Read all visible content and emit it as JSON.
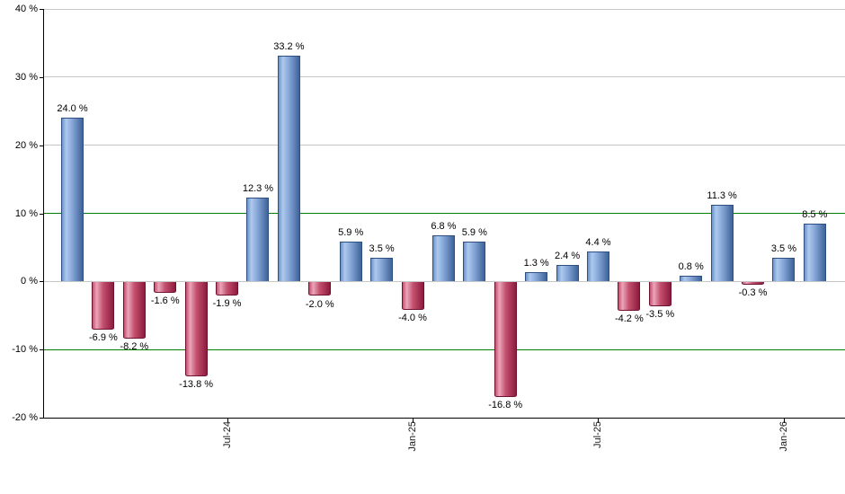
{
  "chart_data": {
    "type": "bar",
    "title": "",
    "xlabel": "",
    "ylabel": "",
    "ylim": [
      -20,
      40
    ],
    "grid": true,
    "legend_position": "none",
    "y_ticks": [
      {
        "value": 40,
        "label": "40 %"
      },
      {
        "value": 30,
        "label": "30 %"
      },
      {
        "value": 20,
        "label": "20 %"
      },
      {
        "value": 10,
        "label": "10 %"
      },
      {
        "value": 0,
        "label": "0 %"
      },
      {
        "value": -10,
        "label": "-10 %"
      },
      {
        "value": -20,
        "label": "-20 %"
      }
    ],
    "highlight_gridlines": [
      10,
      -10
    ],
    "values": [
      24.0,
      -6.9,
      -8.2,
      -1.6,
      -13.8,
      -1.9,
      12.3,
      33.2,
      -2.0,
      5.9,
      3.5,
      -4.0,
      6.8,
      5.9,
      -16.8,
      1.3,
      2.4,
      4.4,
      -4.2,
      -3.5,
      0.8,
      11.3,
      -0.3,
      3.5,
      8.5
    ],
    "bar_labels": [
      "24.0 %",
      "-6.9 %",
      "-8.2 %",
      "-1.6 %",
      "-13.8 %",
      "-1.9 %",
      "12.3 %",
      "33.2 %",
      "-2.0 %",
      "5.9 %",
      "3.5 %",
      "-4.0 %",
      "6.8 %",
      "5.9 %",
      "-16.8 %",
      "1.3 %",
      "2.4 %",
      "4.4 %",
      "-4.2 %",
      "-3.5 %",
      "0.8 %",
      "11.3 %",
      "-0.3 %",
      "3.5 %",
      "8.5 %"
    ],
    "x_ticks": [
      {
        "index": 5,
        "label": "Jul-24"
      },
      {
        "index": 11,
        "label": "Jan-25"
      },
      {
        "index": 17,
        "label": "Jul-25"
      },
      {
        "index": 23,
        "label": "Jan-26"
      }
    ]
  },
  "colors": {
    "background": "#ffffff",
    "axis": "#000000",
    "gridline": "#c6c6c6",
    "highlight_line": "#008000",
    "label_text": "#000000",
    "positive_bar_gradient": [
      "#6d93c9",
      "#adc9ee",
      "#84a5d6",
      "#3e6399"
    ],
    "positive_bar_border": "#2d4f82",
    "negative_bar_gradient": [
      "#c5506e",
      "#eba6bb",
      "#c4506f",
      "#8e1b3e"
    ],
    "negative_bar_border": "#6f1230"
  }
}
